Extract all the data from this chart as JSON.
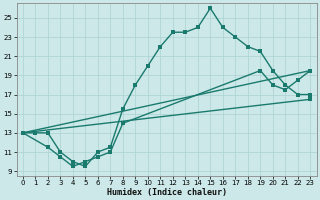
{
  "xlabel": "Humidex (Indice chaleur)",
  "bg_color": "#cce8e8",
  "line_color": "#1a7a6e",
  "grid_color": "#b0d4d4",
  "xlim": [
    -0.5,
    23.5
  ],
  "ylim": [
    8.5,
    26.5
  ],
  "xticks": [
    0,
    1,
    2,
    3,
    4,
    5,
    6,
    7,
    8,
    9,
    10,
    11,
    12,
    13,
    14,
    15,
    16,
    17,
    18,
    19,
    20,
    21,
    22,
    23
  ],
  "yticks": [
    9,
    11,
    13,
    15,
    17,
    19,
    21,
    23,
    25
  ],
  "line1_x": [
    0,
    1,
    2,
    3,
    4,
    5,
    6,
    7,
    8,
    9,
    10,
    11,
    12,
    13,
    14,
    15,
    16,
    17,
    18,
    19,
    20,
    21,
    22,
    23
  ],
  "line1_y": [
    13,
    13,
    13,
    11,
    10,
    9.5,
    11,
    11.5,
    15.5,
    18,
    20,
    22,
    23.5,
    23.5,
    24,
    26,
    24,
    23,
    22,
    21.5,
    19.5,
    18,
    17,
    17
  ],
  "line2_x": [
    0,
    2,
    3,
    4,
    5,
    6,
    7,
    8,
    19,
    20,
    21,
    22,
    23
  ],
  "line2_y": [
    13,
    11.5,
    10.5,
    9.5,
    10,
    10.5,
    11,
    14,
    19.5,
    18,
    17.5,
    18.5,
    19.5
  ],
  "line3_x": [
    0,
    23
  ],
  "line3_y": [
    13,
    19.5
  ],
  "line4_x": [
    0,
    23
  ],
  "line4_y": [
    13,
    16.5
  ],
  "marker_size": 2.5,
  "linewidth": 1.0
}
